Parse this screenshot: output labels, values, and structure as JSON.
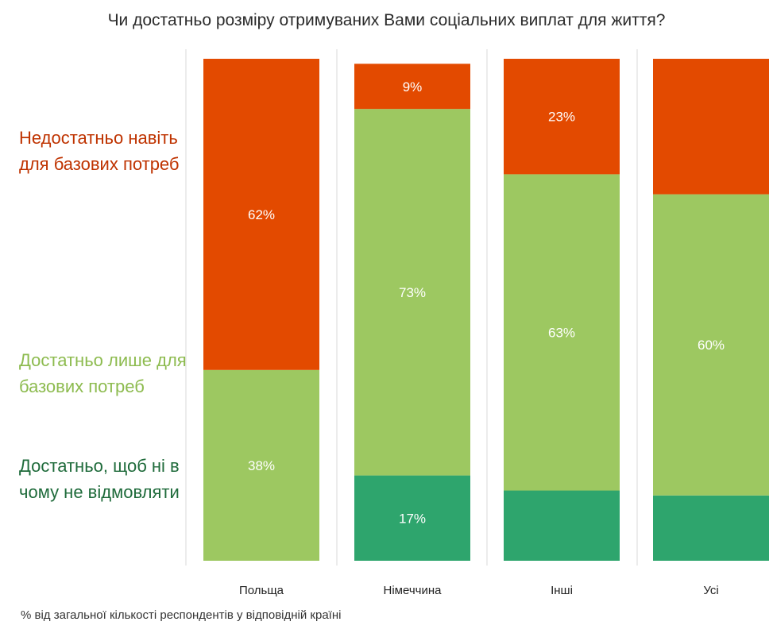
{
  "title": "Чи достатньо розміру отримуваних Вами соціальних виплат для життя?",
  "footnote": "% від загальної кількості респондентів у відповідній країні",
  "colors": {
    "insufficient": "#e34a00",
    "basic": "#9dc861",
    "sufficient": "#2ea56d",
    "label_insufficient": "#bf3300",
    "label_basic": "#8dbb4f",
    "label_sufficient": "#1f6b3b",
    "gridline": "#d9d9d9"
  },
  "chart_data": {
    "type": "bar",
    "stacked": true,
    "normalized": true,
    "title": "Чи достатньо розміру отримуваних Вами соціальних виплат для життя?",
    "categories": [
      "Польща",
      "Німеччина",
      "Інші",
      "Усі"
    ],
    "series": [
      {
        "key": "sufficient",
        "name": "Достатньо, щоб ні в чому не відмовляти",
        "values": [
          0,
          17,
          14,
          13
        ],
        "labels": [
          "",
          "17%",
          "",
          ""
        ]
      },
      {
        "key": "basic",
        "name": "Достатньо лише для базових потреб",
        "values": [
          38,
          73,
          63,
          60
        ],
        "labels": [
          "38%",
          "73%",
          "63%",
          "60%"
        ]
      },
      {
        "key": "insufficient",
        "name": "Недостатньо навіть для базових потреб",
        "values": [
          62,
          9,
          23,
          27
        ],
        "labels": [
          "62%",
          "9%",
          "23%",
          ""
        ]
      }
    ],
    "ylim": [
      0,
      100
    ],
    "grid": false,
    "legend": "left"
  }
}
